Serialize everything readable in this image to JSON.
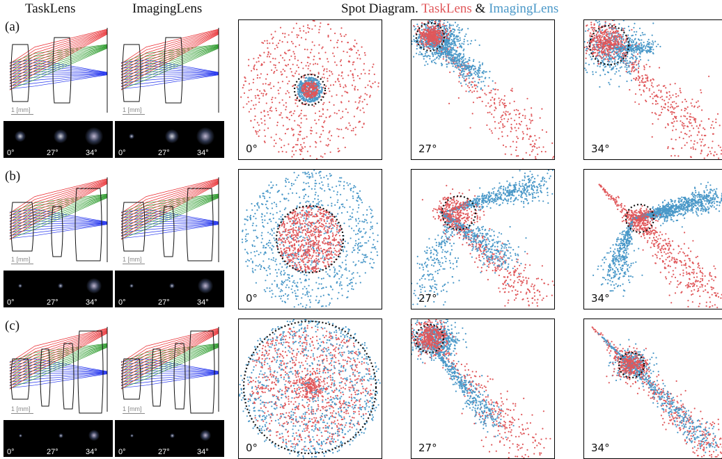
{
  "headers": {
    "tasklens": "TaskLens",
    "imaginglens": "ImagingLens",
    "spot_prefix": "Spot Diagram.",
    "spot_task": "TaskLens",
    "spot_amp": "&",
    "spot_imaging": "ImagingLens"
  },
  "colors": {
    "tasklens": "#e0575a",
    "imaginglens": "#4a98c8",
    "ray_red": "#e8262b",
    "ray_green": "#2a9a2a",
    "ray_blue": "#2233ee"
  },
  "scale_label": "1 [mm]",
  "rows": [
    {
      "label": "(a)",
      "angles": [
        "0°",
        "27°",
        "34°"
      ]
    },
    {
      "label": "(b)",
      "angles": [
        "0°",
        "27°",
        "34°"
      ]
    },
    {
      "label": "(c)",
      "angles": [
        "0°",
        "27°",
        "34°"
      ]
    }
  ]
}
